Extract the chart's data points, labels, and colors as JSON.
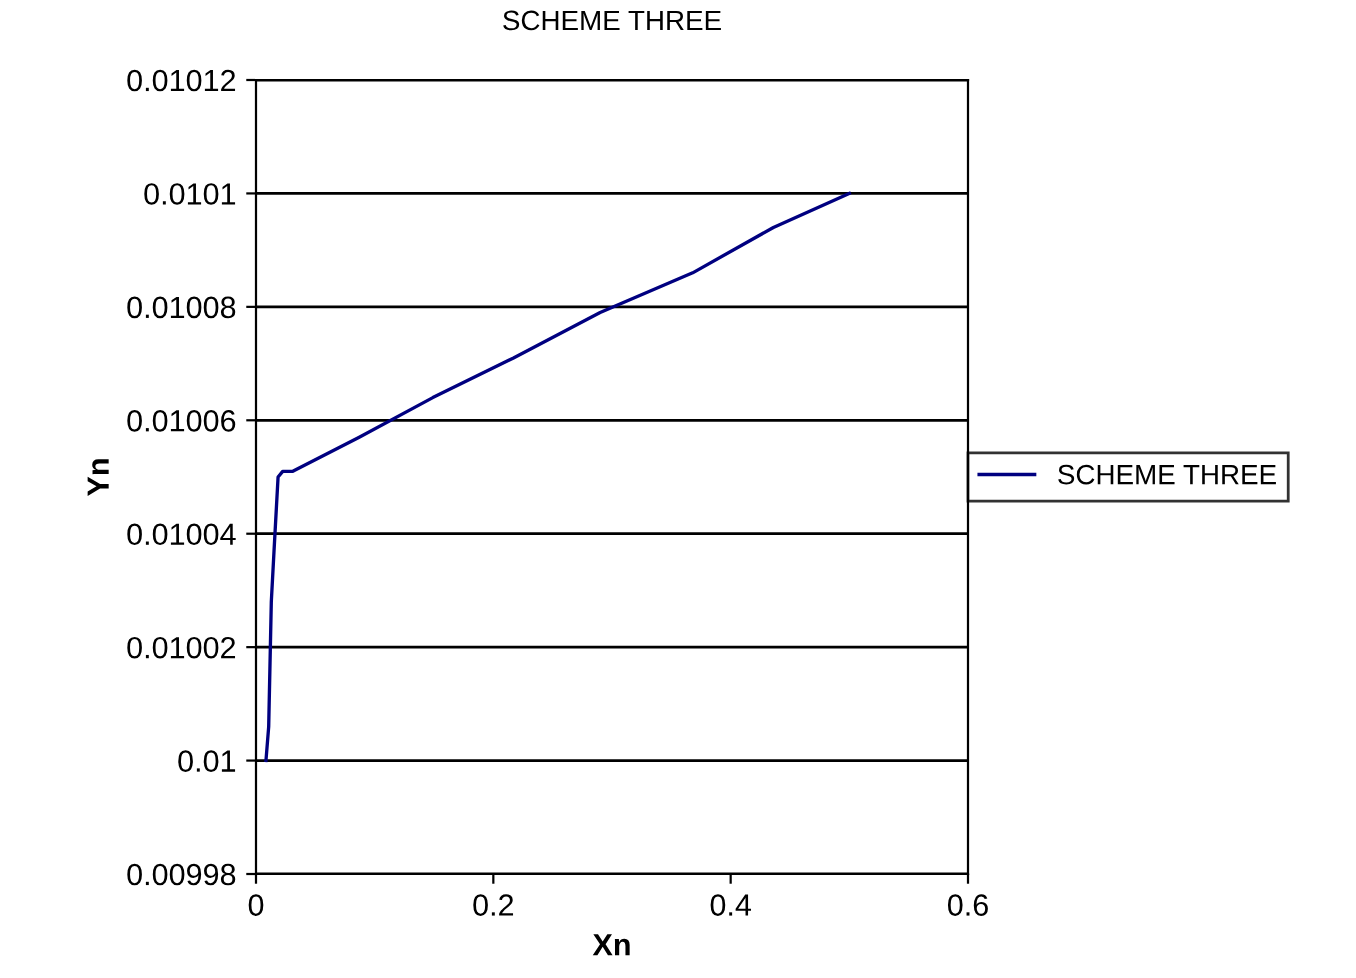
{
  "chart_data": {
    "type": "line",
    "title": "SCHEME THREE",
    "xlabel": "Xn",
    "ylabel": "Yn",
    "series": [
      {
        "name": "SCHEME THREE",
        "color": "#000080",
        "x": [
          0.0084,
          0.0107,
          0.0129,
          0.0152,
          0.0186,
          0.0225,
          0.031,
          0.087,
          0.149,
          0.217,
          0.29,
          0.368,
          0.436,
          0.5
        ],
        "values": [
          0.01,
          0.010006,
          0.010028,
          0.010037,
          0.01005,
          0.010051,
          0.010051,
          0.010057,
          0.010064,
          0.010071,
          0.010079,
          0.010086,
          0.010094,
          0.0101
        ]
      }
    ],
    "xlim": [
      0,
      0.6
    ],
    "xticks": [
      0,
      0.2,
      0.4,
      0.6
    ],
    "ylim": [
      0.00998,
      0.01012
    ],
    "yticks": [
      0.00998,
      0.01,
      0.01002,
      0.01004,
      0.01006,
      0.01008,
      0.0101,
      0.01012
    ],
    "grid": "y",
    "legend": "right",
    "marker": "none",
    "line_style": "solid"
  }
}
